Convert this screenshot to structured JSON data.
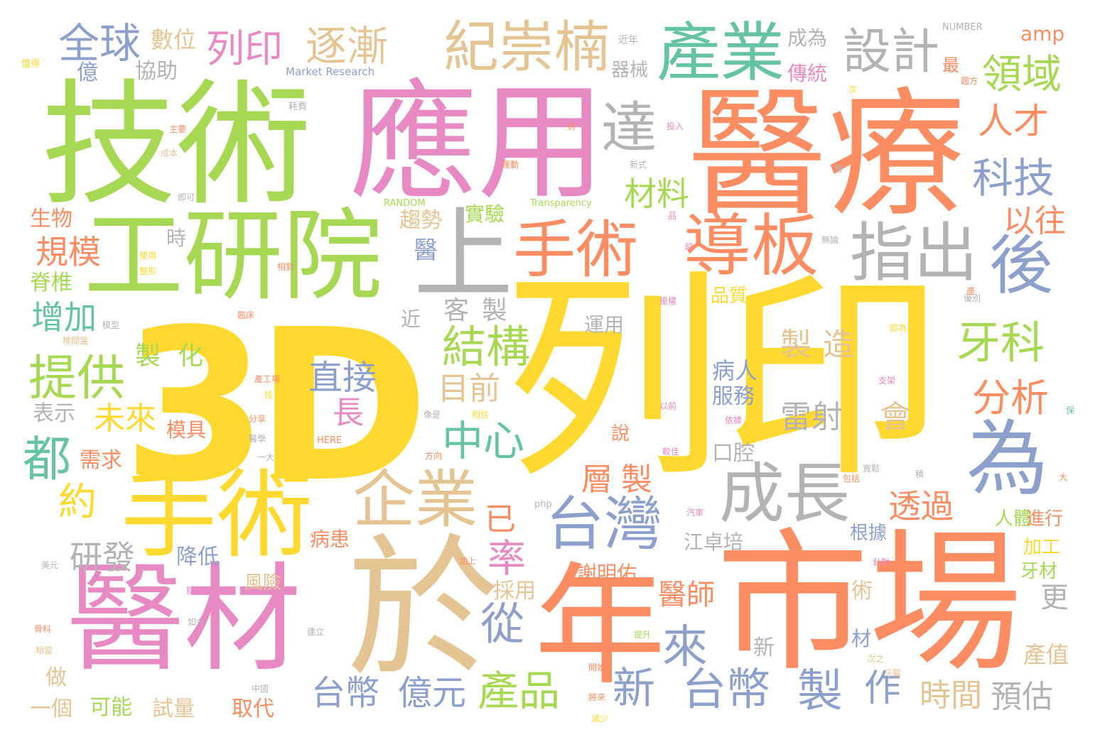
{
  "palette": {
    "yellow": "#ffd92f",
    "green": "#a6d854",
    "pink": "#e78ac3",
    "orange": "#fc8d62",
    "tan": "#e5c494",
    "blue": "#8da0cb",
    "teal": "#66c2a5",
    "gray": "#b3b3b3"
  },
  "words": [
    "3D",
    "列印",
    "醫療",
    "技術",
    "應用",
    "市場",
    "於",
    "醫材",
    "工研院",
    "年",
    "手術",
    "上",
    "導板",
    "產業",
    "紀崇楠",
    "手術",
    "指出",
    "為",
    "成長",
    "企業",
    "台灣",
    "後",
    "達",
    "設計",
    "逐漸",
    "全球",
    "列印",
    "領域",
    "提供",
    "結構",
    "牙科",
    "科技",
    "人才",
    "材料",
    "中心",
    "直接",
    "分析",
    "都",
    "台幣",
    "億元",
    "產品",
    "新",
    "台幣",
    "製",
    "作",
    "來",
    "從",
    "率",
    "雷射",
    "會",
    "長",
    "未來",
    "規模",
    "增加",
    "製造",
    "已",
    "目前",
    "層製",
    "約",
    "透過",
    "研發",
    "以往",
    "時間",
    "預估",
    "數位",
    "協助",
    "實驗",
    "趨勢",
    "醫",
    "客製",
    "製化",
    "生物",
    "脊椎",
    "病人",
    "服務",
    "口腔",
    "表示",
    "模具",
    "需求",
    "降低",
    "江卓培",
    "謝明佑",
    "醫師",
    "採用",
    "術",
    "材",
    "更",
    "產值",
    "一個",
    "可能",
    "試量",
    "取代",
    "新",
    "做",
    "億",
    "器械",
    "成為",
    "傳統",
    "amp",
    "最",
    "時",
    "近",
    "運用",
    "品質",
    "根據",
    "人體",
    "進行",
    "加工",
    "牙材",
    "病患",
    "風險",
    "說",
    "Market Research",
    "NUMBER",
    "RANDOM",
    "HERE",
    "Transparency",
    "php",
    "近年",
    "耗費",
    "值得",
    "主要",
    "成本",
    "即可",
    "投入",
    "新式",
    "封",
    "品",
    "運動",
    "使用",
    "整形",
    "相對",
    "臨床",
    "模型",
    "椎間盤",
    "產工場",
    "分享",
    "醫學",
    "一大",
    "方向",
    "技",
    "像是",
    "相信",
    "以前",
    "依據",
    "較佳",
    "援權",
    "無論",
    "骨科",
    "相當",
    "美元",
    "中國",
    "將來",
    "減少",
    "開始",
    "提升",
    "次之",
    "牙醫",
    "加上",
    "針對",
    "汽車",
    "支架",
    "包括",
    "優別",
    "產",
    "大",
    "保",
    "積",
    "次",
    "趨方",
    "時",
    "增",
    "認為",
    "寬鬆",
    "如今",
    "建立",
    "製",
    "點"
  ]
}
